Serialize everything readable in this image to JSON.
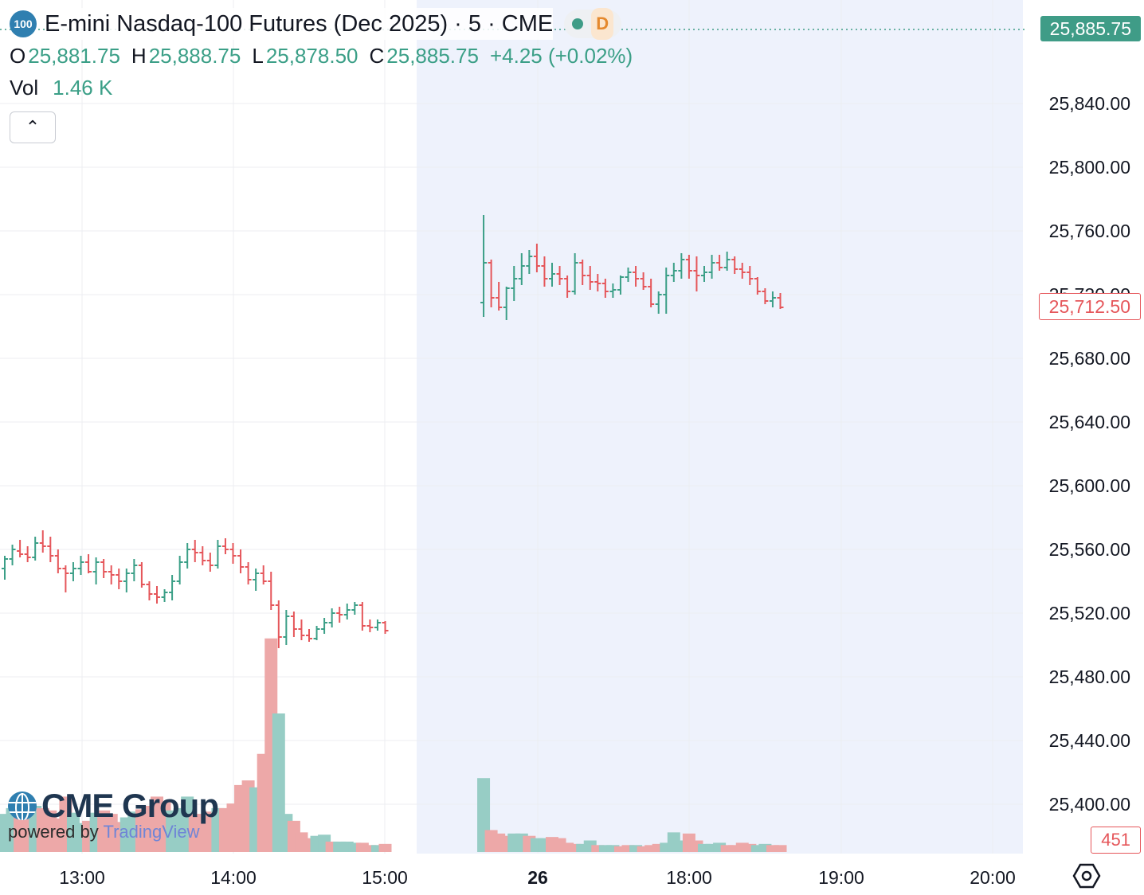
{
  "header": {
    "badge": "100",
    "title": "E-mini Nasdaq-100 Futures (Dec 2025) · 5 · CME",
    "status_letter": "D",
    "ohlc": {
      "o_label": "O",
      "o_value": "25,881.75",
      "h_label": "H",
      "h_value": "25,888.75",
      "l_label": "L",
      "l_value": "25,878.50",
      "c_label": "C",
      "c_value": "25,885.75",
      "change": "+4.25 (+0.02%)"
    },
    "vol_label": "Vol",
    "vol_value": "1.46 K"
  },
  "price_tags": {
    "last": "25,885.75",
    "current": "25,712.50",
    "volume": "451"
  },
  "logo": {
    "brand": "CME Group",
    "powered_by": "powered by",
    "platform": "TradingView"
  },
  "colors": {
    "up": "#3b9f87",
    "down": "#e5565a",
    "vol_up": "#97cdc5",
    "vol_down": "#eda8a8",
    "session_shade": "#eef2fc",
    "grid": "#eceef2"
  },
  "chart_data": {
    "type": "ohlc-bar",
    "interval": "5",
    "ylim": [
      25370,
      25900
    ],
    "y_ticks": [
      "25,400.00",
      "25,440.00",
      "25,480.00",
      "25,520.00",
      "25,560.00",
      "25,600.00",
      "25,640.00",
      "25,680.00",
      "25,720.00",
      "25,760.00",
      "25,800.00",
      "25,840.00"
    ],
    "x_ticks": [
      "13:00",
      "14:00",
      "15:00",
      "26",
      "18:00",
      "19:00",
      "20:00"
    ],
    "bars": [
      [
        25548,
        25556,
        25541,
        25554
      ],
      [
        25554,
        25563,
        25550,
        25560
      ],
      [
        25559,
        25566,
        25555,
        25557
      ],
      [
        25557,
        25562,
        25552,
        25555
      ],
      [
        25555,
        25568,
        25553,
        25564
      ],
      [
        25564,
        25572,
        25558,
        25562
      ],
      [
        25562,
        25568,
        25552,
        25556
      ],
      [
        25556,
        25560,
        25545,
        25548
      ],
      [
        25548,
        25550,
        25533,
        25545
      ],
      [
        25545,
        25552,
        25540,
        25548
      ],
      [
        25548,
        25556,
        25544,
        25552
      ],
      [
        25552,
        25557,
        25545,
        25546
      ],
      [
        25546,
        25555,
        25538,
        25552
      ],
      [
        25552,
        25554,
        25542,
        25546
      ],
      [
        25546,
        25550,
        25538,
        25544
      ],
      [
        25544,
        25548,
        25535,
        25540
      ],
      [
        25540,
        25548,
        25533,
        25545
      ],
      [
        25545,
        25554,
        25540,
        25550
      ],
      [
        25550,
        25552,
        25536,
        25538
      ],
      [
        25538,
        25540,
        25528,
        25532
      ],
      [
        25532,
        25537,
        25526,
        25530
      ],
      [
        25530,
        25535,
        25527,
        25533
      ],
      [
        25533,
        25544,
        25528,
        25540
      ],
      [
        25540,
        25556,
        25538,
        25552
      ],
      [
        25552,
        25564,
        25548,
        25560
      ],
      [
        25560,
        25566,
        25552,
        25558
      ],
      [
        25558,
        25562,
        25550,
        25553
      ],
      [
        25553,
        25558,
        25546,
        25550
      ],
      [
        25550,
        25566,
        25548,
        25562
      ],
      [
        25562,
        25567,
        25557,
        25560
      ],
      [
        25560,
        25564,
        25551,
        25556
      ],
      [
        25556,
        25560,
        25545,
        25549
      ],
      [
        25549,
        25552,
        25538,
        25541
      ],
      [
        25541,
        25548,
        25534,
        25545
      ],
      [
        25545,
        25550,
        25538,
        25540
      ],
      [
        25540,
        25546,
        25522,
        25525
      ],
      [
        25525,
        25528,
        25498,
        25505
      ],
      [
        25505,
        25522,
        25500,
        25518
      ],
      [
        25518,
        25521,
        25505,
        25510
      ],
      [
        25510,
        25516,
        25503,
        25506
      ],
      [
        25506,
        25510,
        25502,
        25504
      ],
      [
        25504,
        25512,
        25503,
        25510
      ],
      [
        25510,
        25517,
        25507,
        25514
      ],
      [
        25514,
        25523,
        25511,
        25520
      ],
      [
        25520,
        25524,
        25514,
        25519
      ],
      [
        25519,
        25526,
        25516,
        25522
      ],
      [
        25522,
        25527,
        25519,
        25525
      ],
      [
        25525,
        25527,
        25509,
        25512
      ],
      [
        25512,
        25516,
        25508,
        25511
      ],
      [
        25511,
        25516,
        25509,
        25514
      ],
      [
        25514,
        25515,
        25507,
        25509
      ],
      [
        25715,
        25770,
        25706,
        25740
      ],
      [
        25740,
        25742,
        25712,
        25718
      ],
      [
        25718,
        25728,
        25710,
        25712
      ],
      [
        25712,
        25725,
        25704,
        25724
      ],
      [
        25724,
        25738,
        25716,
        25730
      ],
      [
        25730,
        25746,
        25726,
        25738
      ],
      [
        25738,
        25748,
        25733,
        25744
      ],
      [
        25744,
        25752,
        25734,
        25738
      ],
      [
        25738,
        25744,
        25725,
        25730
      ],
      [
        25730,
        25740,
        25725,
        25733
      ],
      [
        25733,
        25738,
        25726,
        25730
      ],
      [
        25730,
        25732,
        25718,
        25722
      ],
      [
        25722,
        25746,
        25720,
        25740
      ],
      [
        25740,
        25742,
        25726,
        25732
      ],
      [
        25732,
        25738,
        25723,
        25728
      ],
      [
        25728,
        25733,
        25722,
        25727
      ],
      [
        25727,
        25730,
        25718,
        25722
      ],
      [
        25722,
        25727,
        25718,
        25723
      ],
      [
        25723,
        25732,
        25720,
        25731
      ],
      [
        25731,
        25737,
        25728,
        25734
      ],
      [
        25734,
        25738,
        25725,
        25730
      ],
      [
        25730,
        25734,
        25723,
        25725
      ],
      [
        25725,
        25730,
        25712,
        25714
      ],
      [
        25714,
        25722,
        25708,
        25720
      ],
      [
        25720,
        25737,
        25708,
        25732
      ],
      [
        25732,
        25740,
        25728,
        25735
      ],
      [
        25735,
        25746,
        25730,
        25742
      ],
      [
        25742,
        25745,
        25730,
        25735
      ],
      [
        25735,
        25744,
        25722,
        25732
      ],
      [
        25732,
        25738,
        25728,
        25734
      ],
      [
        25734,
        25745,
        25730,
        25740
      ],
      [
        25740,
        25745,
        25735,
        25737
      ],
      [
        25737,
        25747,
        25735,
        25742
      ],
      [
        25742,
        25744,
        25733,
        25736
      ],
      [
        25736,
        25740,
        25730,
        25734
      ],
      [
        25734,
        25738,
        25726,
        25730
      ],
      [
        25730,
        25731,
        25720,
        25722
      ],
      [
        25722,
        25724,
        25714,
        25716
      ],
      [
        25716,
        25722,
        25712,
        25718
      ],
      [
        25718,
        25721,
        25711,
        25712
      ]
    ],
    "volume": [
      [
        33,
        1
      ],
      [
        38,
        1
      ],
      [
        30,
        0
      ],
      [
        34,
        0
      ],
      [
        40,
        1
      ],
      [
        38,
        0
      ],
      [
        36,
        0
      ],
      [
        29,
        0
      ],
      [
        48,
        0
      ],
      [
        34,
        1
      ],
      [
        25,
        1
      ],
      [
        27,
        0
      ],
      [
        34,
        1
      ],
      [
        36,
        0
      ],
      [
        33,
        0
      ],
      [
        26,
        0
      ],
      [
        30,
        1
      ],
      [
        35,
        1
      ],
      [
        37,
        0
      ],
      [
        40,
        0
      ],
      [
        48,
        0
      ],
      [
        43,
        0
      ],
      [
        36,
        1
      ],
      [
        38,
        1
      ],
      [
        48,
        1
      ],
      [
        33,
        0
      ],
      [
        33,
        0
      ],
      [
        35,
        0
      ],
      [
        38,
        1
      ],
      [
        38,
        0
      ],
      [
        42,
        0
      ],
      [
        58,
        0
      ],
      [
        62,
        0
      ],
      [
        56,
        1
      ],
      [
        85,
        0
      ],
      [
        185,
        0
      ],
      [
        120,
        1
      ],
      [
        33,
        1
      ],
      [
        27,
        0
      ],
      [
        17,
        0
      ],
      [
        12,
        0
      ],
      [
        14,
        1
      ],
      [
        15,
        1
      ],
      [
        9,
        0
      ],
      [
        9,
        1
      ],
      [
        9,
        1
      ],
      [
        8,
        1
      ],
      [
        8,
        0
      ],
      [
        6,
        0
      ],
      [
        6,
        1
      ],
      [
        7,
        0
      ],
      [
        64,
        1
      ],
      [
        19,
        0
      ],
      [
        16,
        0
      ],
      [
        14,
        0
      ],
      [
        16,
        1
      ],
      [
        16,
        1
      ],
      [
        14,
        0
      ],
      [
        12,
        1
      ],
      [
        12,
        1
      ],
      [
        13,
        0
      ],
      [
        12,
        0
      ],
      [
        8,
        0
      ],
      [
        7,
        0
      ],
      [
        7,
        1
      ],
      [
        10,
        1
      ],
      [
        6,
        0
      ],
      [
        6,
        1
      ],
      [
        6,
        1
      ],
      [
        5,
        0
      ],
      [
        6,
        0
      ],
      [
        6,
        1
      ],
      [
        5,
        0
      ],
      [
        6,
        0
      ],
      [
        7,
        0
      ],
      [
        8,
        1
      ],
      [
        17,
        1
      ],
      [
        10,
        1
      ],
      [
        16,
        0
      ],
      [
        10,
        0
      ],
      [
        7,
        1
      ],
      [
        7,
        1
      ],
      [
        8,
        1
      ],
      [
        6,
        0
      ],
      [
        6,
        0
      ],
      [
        8,
        0
      ],
      [
        7,
        0
      ],
      [
        6,
        1
      ],
      [
        7,
        1
      ],
      [
        6,
        0
      ],
      [
        6,
        0
      ]
    ],
    "volume_max": 220
  }
}
